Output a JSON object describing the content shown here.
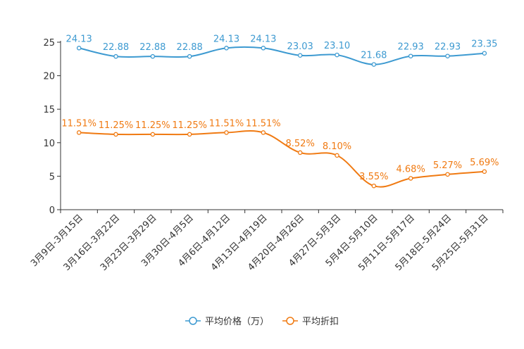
{
  "chart_data": {
    "type": "line",
    "title": "",
    "xlabel": "",
    "ylabel": "",
    "ylim": [
      0,
      25
    ],
    "yticks": [
      0,
      5,
      10,
      15,
      20,
      25
    ],
    "categories": [
      "3月9日-3月15日",
      "3月16日-3月22日",
      "3月23日-3月29日",
      "3月30日-4月5日",
      "4月6日-4月12日",
      "4月13日-4月19日",
      "4月20日-4月26日",
      "4月27日-5月3日",
      "5月4日-5月10日",
      "5月11日-5月17日",
      "5月18日-5月24日",
      "5月25日-5月31日"
    ],
    "series": [
      {
        "name": "平均价格（万）",
        "color": "#3d9ad1",
        "values": [
          24.13,
          22.88,
          22.88,
          22.88,
          24.13,
          24.13,
          23.03,
          23.1,
          21.68,
          22.93,
          22.93,
          23.35
        ],
        "labels": [
          "24.13",
          "22.88",
          "22.88",
          "22.88",
          "24.13",
          "24.13",
          "23.03",
          "23.10",
          "21.68",
          "22.93",
          "22.93",
          "23.35"
        ]
      },
      {
        "name": "平均折扣",
        "color": "#f07a12",
        "values": [
          11.51,
          11.25,
          11.25,
          11.25,
          11.51,
          11.51,
          8.52,
          8.1,
          3.55,
          4.68,
          5.27,
          5.69
        ],
        "labels": [
          "11.51%",
          "11.25%",
          "11.25%",
          "11.25%",
          "11.51%",
          "11.51%",
          "8.52%",
          "8.10%",
          "3.55%",
          "4.68%",
          "5.27%",
          "5.69%"
        ]
      }
    ],
    "legend_position": "bottom-center",
    "grid": false
  }
}
